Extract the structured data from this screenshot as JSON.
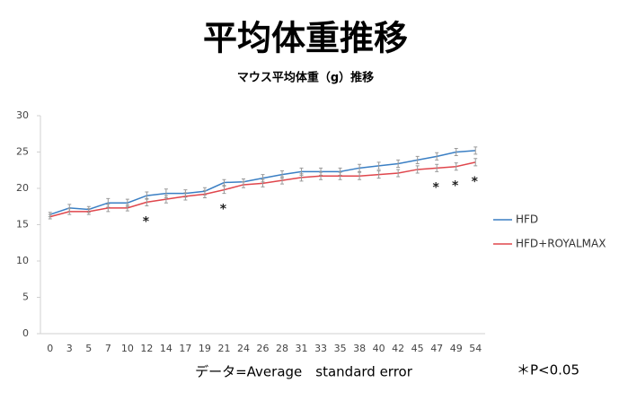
{
  "chart_data": {
    "type": "line",
    "title": "平均体重推移",
    "subtitle": "マウス平均体重（g）推移",
    "categories": [
      0,
      3,
      5,
      7,
      10,
      12,
      14,
      17,
      19,
      21,
      24,
      26,
      28,
      31,
      33,
      35,
      38,
      40,
      42,
      45,
      47,
      49,
      54
    ],
    "series": [
      {
        "name": "HFD",
        "color": "#3a7fc4",
        "values": [
          16.4,
          17.3,
          17.1,
          18.0,
          18.0,
          19.0,
          19.3,
          19.3,
          19.6,
          20.8,
          20.9,
          21.4,
          21.9,
          22.3,
          22.3,
          22.3,
          22.8,
          23.1,
          23.4,
          23.9,
          24.4,
          25.0,
          25.2
        ],
        "errors": [
          0.3,
          0.5,
          0.4,
          0.6,
          0.5,
          0.5,
          0.6,
          0.5,
          0.5,
          0.4,
          0.4,
          0.5,
          0.5,
          0.5,
          0.5,
          0.5,
          0.5,
          0.5,
          0.5,
          0.5,
          0.5,
          0.5,
          0.5
        ]
      },
      {
        "name": "HFD+ROYALMAX",
        "color": "#e0464c",
        "values": [
          16.1,
          16.8,
          16.8,
          17.3,
          17.3,
          18.1,
          18.5,
          18.9,
          19.2,
          19.8,
          20.5,
          20.7,
          21.1,
          21.5,
          21.7,
          21.7,
          21.7,
          21.9,
          22.1,
          22.6,
          22.8,
          23.0,
          23.6
        ],
        "errors": [
          0.3,
          0.4,
          0.4,
          0.5,
          0.4,
          0.5,
          0.5,
          0.5,
          0.5,
          0.5,
          0.4,
          0.5,
          0.5,
          0.5,
          0.5,
          0.5,
          0.5,
          0.5,
          0.5,
          0.5,
          0.5,
          0.5,
          0.5
        ]
      }
    ],
    "annotations": [
      {
        "text": "*",
        "x": 12
      },
      {
        "text": "*",
        "x": 21
      },
      {
        "text": "*",
        "x": 47
      },
      {
        "text": "*",
        "x": 49
      },
      {
        "text": "*",
        "x": 54
      }
    ],
    "ylim": [
      0,
      30
    ],
    "yticks": [
      0,
      5,
      10,
      15,
      20,
      25,
      30
    ],
    "legend": "right",
    "footnote": "データ=Average　standard error",
    "significance_note": "＊P<0.05"
  }
}
